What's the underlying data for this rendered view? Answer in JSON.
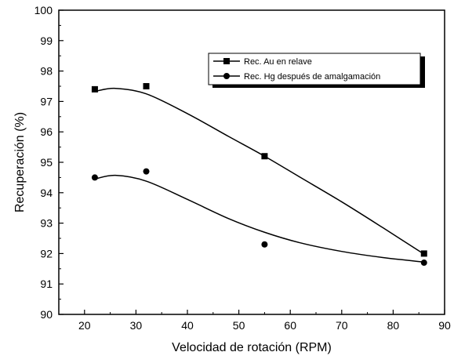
{
  "chart_data": {
    "type": "scatter",
    "title": "",
    "xlabel": "Velocidad de rotación  (RPM)",
    "ylabel": "Recuperación  (%)",
    "xlim": [
      15,
      90
    ],
    "ylim": [
      90,
      100
    ],
    "xticks": [
      20,
      30,
      40,
      50,
      60,
      70,
      80,
      90
    ],
    "yticks": [
      90,
      91,
      92,
      93,
      94,
      95,
      96,
      97,
      98,
      99,
      100
    ],
    "grid": false,
    "legend_position": "top-right",
    "series": [
      {
        "name": "Rec. Au en relave",
        "marker": "square",
        "color": "#000000",
        "x": [
          22,
          32,
          55,
          86
        ],
        "y": [
          97.4,
          97.5,
          95.2,
          92.0
        ],
        "fit_curve": {
          "x": [
            22,
            26,
            32,
            40,
            48,
            55,
            62,
            70,
            78,
            86
          ],
          "y": [
            97.33,
            97.43,
            97.25,
            96.6,
            95.85,
            95.2,
            94.5,
            93.7,
            92.85,
            91.98
          ]
        }
      },
      {
        "name": "Rec. Hg después de amalgamación",
        "marker": "circle",
        "color": "#000000",
        "x": [
          22,
          32,
          55,
          86
        ],
        "y": [
          94.5,
          94.7,
          92.3,
          91.7
        ],
        "fit_curve": {
          "x": [
            22,
            26,
            32,
            40,
            48,
            55,
            62,
            70,
            78,
            86
          ],
          "y": [
            94.45,
            94.57,
            94.38,
            93.78,
            93.15,
            92.7,
            92.35,
            92.07,
            91.87,
            91.72
          ]
        }
      }
    ]
  }
}
